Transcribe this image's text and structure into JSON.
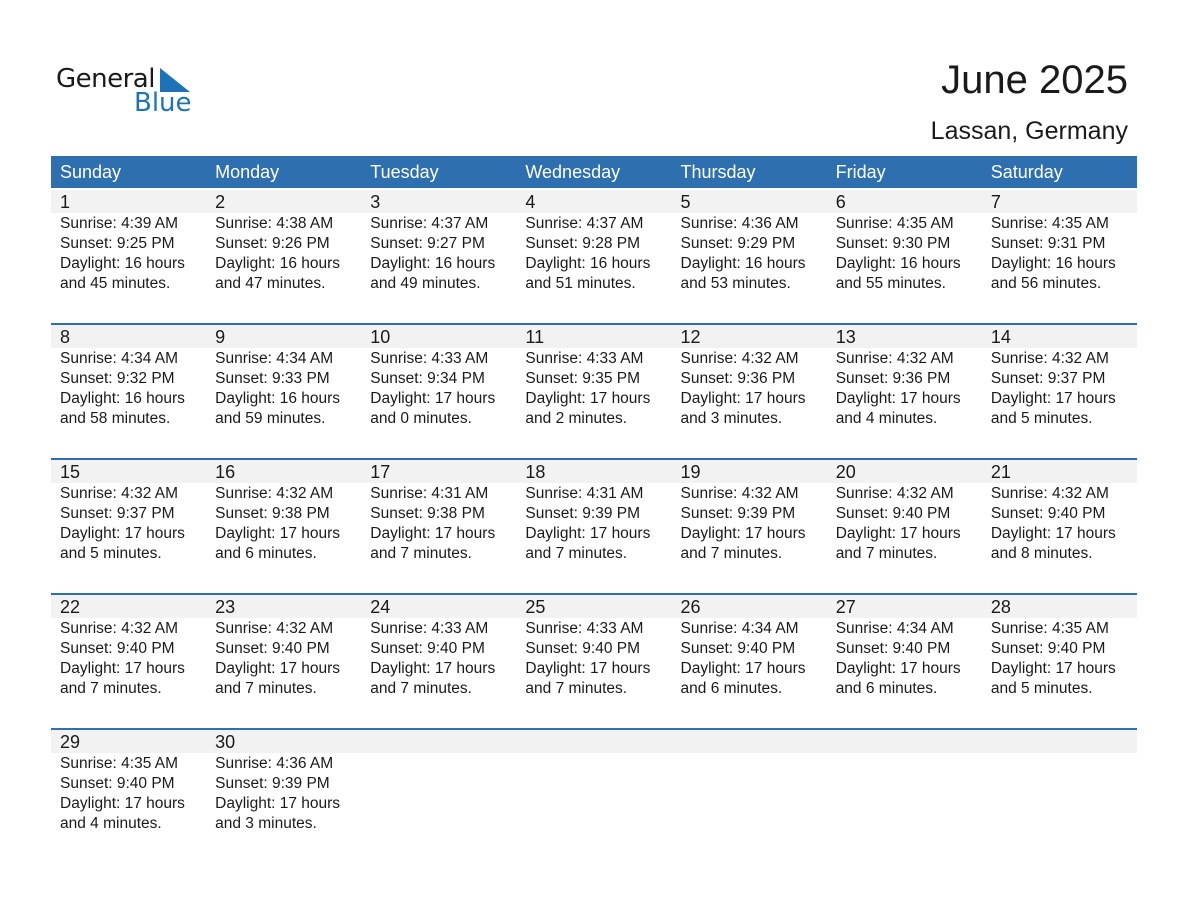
{
  "logo": {
    "text1": "General",
    "text2": "Blue"
  },
  "title": "June 2025",
  "location": "Lassan, Germany",
  "colors": {
    "header": "#2e6fb0",
    "band": "#f2f2f2",
    "logo_blue": "#1e72b8"
  },
  "weekdays": [
    "Sunday",
    "Monday",
    "Tuesday",
    "Wednesday",
    "Thursday",
    "Friday",
    "Saturday"
  ],
  "weeks": [
    [
      {
        "day": "1",
        "sunrise": "Sunrise: 4:39 AM",
        "sunset": "Sunset: 9:25 PM",
        "daylight": "Daylight: 16 hours",
        "minutes": "and 45 minutes."
      },
      {
        "day": "2",
        "sunrise": "Sunrise: 4:38 AM",
        "sunset": "Sunset: 9:26 PM",
        "daylight": "Daylight: 16 hours",
        "minutes": "and 47 minutes."
      },
      {
        "day": "3",
        "sunrise": "Sunrise: 4:37 AM",
        "sunset": "Sunset: 9:27 PM",
        "daylight": "Daylight: 16 hours",
        "minutes": "and 49 minutes."
      },
      {
        "day": "4",
        "sunrise": "Sunrise: 4:37 AM",
        "sunset": "Sunset: 9:28 PM",
        "daylight": "Daylight: 16 hours",
        "minutes": "and 51 minutes."
      },
      {
        "day": "5",
        "sunrise": "Sunrise: 4:36 AM",
        "sunset": "Sunset: 9:29 PM",
        "daylight": "Daylight: 16 hours",
        "minutes": "and 53 minutes."
      },
      {
        "day": "6",
        "sunrise": "Sunrise: 4:35 AM",
        "sunset": "Sunset: 9:30 PM",
        "daylight": "Daylight: 16 hours",
        "minutes": "and 55 minutes."
      },
      {
        "day": "7",
        "sunrise": "Sunrise: 4:35 AM",
        "sunset": "Sunset: 9:31 PM",
        "daylight": "Daylight: 16 hours",
        "minutes": "and 56 minutes."
      }
    ],
    [
      {
        "day": "8",
        "sunrise": "Sunrise: 4:34 AM",
        "sunset": "Sunset: 9:32 PM",
        "daylight": "Daylight: 16 hours",
        "minutes": "and 58 minutes."
      },
      {
        "day": "9",
        "sunrise": "Sunrise: 4:34 AM",
        "sunset": "Sunset: 9:33 PM",
        "daylight": "Daylight: 16 hours",
        "minutes": "and 59 minutes."
      },
      {
        "day": "10",
        "sunrise": "Sunrise: 4:33 AM",
        "sunset": "Sunset: 9:34 PM",
        "daylight": "Daylight: 17 hours",
        "minutes": "and 0 minutes."
      },
      {
        "day": "11",
        "sunrise": "Sunrise: 4:33 AM",
        "sunset": "Sunset: 9:35 PM",
        "daylight": "Daylight: 17 hours",
        "minutes": "and 2 minutes."
      },
      {
        "day": "12",
        "sunrise": "Sunrise: 4:32 AM",
        "sunset": "Sunset: 9:36 PM",
        "daylight": "Daylight: 17 hours",
        "minutes": "and 3 minutes."
      },
      {
        "day": "13",
        "sunrise": "Sunrise: 4:32 AM",
        "sunset": "Sunset: 9:36 PM",
        "daylight": "Daylight: 17 hours",
        "minutes": "and 4 minutes."
      },
      {
        "day": "14",
        "sunrise": "Sunrise: 4:32 AM",
        "sunset": "Sunset: 9:37 PM",
        "daylight": "Daylight: 17 hours",
        "minutes": "and 5 minutes."
      }
    ],
    [
      {
        "day": "15",
        "sunrise": "Sunrise: 4:32 AM",
        "sunset": "Sunset: 9:37 PM",
        "daylight": "Daylight: 17 hours",
        "minutes": "and 5 minutes."
      },
      {
        "day": "16",
        "sunrise": "Sunrise: 4:32 AM",
        "sunset": "Sunset: 9:38 PM",
        "daylight": "Daylight: 17 hours",
        "minutes": "and 6 minutes."
      },
      {
        "day": "17",
        "sunrise": "Sunrise: 4:31 AM",
        "sunset": "Sunset: 9:38 PM",
        "daylight": "Daylight: 17 hours",
        "minutes": "and 7 minutes."
      },
      {
        "day": "18",
        "sunrise": "Sunrise: 4:31 AM",
        "sunset": "Sunset: 9:39 PM",
        "daylight": "Daylight: 17 hours",
        "minutes": "and 7 minutes."
      },
      {
        "day": "19",
        "sunrise": "Sunrise: 4:32 AM",
        "sunset": "Sunset: 9:39 PM",
        "daylight": "Daylight: 17 hours",
        "minutes": "and 7 minutes."
      },
      {
        "day": "20",
        "sunrise": "Sunrise: 4:32 AM",
        "sunset": "Sunset: 9:40 PM",
        "daylight": "Daylight: 17 hours",
        "minutes": "and 7 minutes."
      },
      {
        "day": "21",
        "sunrise": "Sunrise: 4:32 AM",
        "sunset": "Sunset: 9:40 PM",
        "daylight": "Daylight: 17 hours",
        "minutes": "and 8 minutes."
      }
    ],
    [
      {
        "day": "22",
        "sunrise": "Sunrise: 4:32 AM",
        "sunset": "Sunset: 9:40 PM",
        "daylight": "Daylight: 17 hours",
        "minutes": "and 7 minutes."
      },
      {
        "day": "23",
        "sunrise": "Sunrise: 4:32 AM",
        "sunset": "Sunset: 9:40 PM",
        "daylight": "Daylight: 17 hours",
        "minutes": "and 7 minutes."
      },
      {
        "day": "24",
        "sunrise": "Sunrise: 4:33 AM",
        "sunset": "Sunset: 9:40 PM",
        "daylight": "Daylight: 17 hours",
        "minutes": "and 7 minutes."
      },
      {
        "day": "25",
        "sunrise": "Sunrise: 4:33 AM",
        "sunset": "Sunset: 9:40 PM",
        "daylight": "Daylight: 17 hours",
        "minutes": "and 7 minutes."
      },
      {
        "day": "26",
        "sunrise": "Sunrise: 4:34 AM",
        "sunset": "Sunset: 9:40 PM",
        "daylight": "Daylight: 17 hours",
        "minutes": "and 6 minutes."
      },
      {
        "day": "27",
        "sunrise": "Sunrise: 4:34 AM",
        "sunset": "Sunset: 9:40 PM",
        "daylight": "Daylight: 17 hours",
        "minutes": "and 6 minutes."
      },
      {
        "day": "28",
        "sunrise": "Sunrise: 4:35 AM",
        "sunset": "Sunset: 9:40 PM",
        "daylight": "Daylight: 17 hours",
        "minutes": "and 5 minutes."
      }
    ],
    [
      {
        "day": "29",
        "sunrise": "Sunrise: 4:35 AM",
        "sunset": "Sunset: 9:40 PM",
        "daylight": "Daylight: 17 hours",
        "minutes": "and 4 minutes."
      },
      {
        "day": "30",
        "sunrise": "Sunrise: 4:36 AM",
        "sunset": "Sunset: 9:39 PM",
        "daylight": "Daylight: 17 hours",
        "minutes": "and 3 minutes."
      }
    ]
  ]
}
